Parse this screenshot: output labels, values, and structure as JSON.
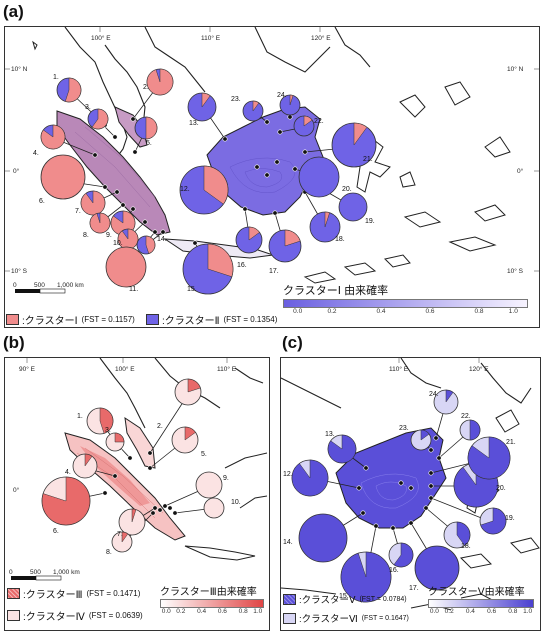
{
  "panels": {
    "a": {
      "letter": "(a)",
      "coords": {
        "lon1": "100° E",
        "lon2": "110° E",
        "lon3": "120° E",
        "lat1": "10° N",
        "lat2": "0°",
        "lat3": "10° S",
        "lat1r": "10° N",
        "lat2r": "0°",
        "lat3r": "10° S"
      },
      "scale": {
        "zero": "0",
        "mid": "500",
        "end": "1,000 km"
      },
      "legend": {
        "c1": {
          "label": ":クラスターⅠ",
          "fst": "(FST = 0.1157)",
          "color": "#f08c8c"
        },
        "c2": {
          "label": ":クラスターⅡ",
          "fst": "(FST = 0.1354)",
          "color": "#6f63e6"
        }
      },
      "colorbar": {
        "title": "クラスターⅠ 由来確率",
        "ticks": [
          "0.0",
          "0.2",
          "0.4",
          "0.6",
          "0.8",
          "1.0"
        ],
        "from": "#6a5fe0",
        "to": "#f7f3ff"
      },
      "labels": [
        "1.",
        "2.",
        "3.",
        "4.",
        "5.",
        "6.",
        "7.",
        "8.",
        "9.",
        "10.",
        "11.",
        "12.",
        "13.",
        "14.",
        "15.",
        "16.",
        "17.",
        "18.",
        "19.",
        "20.",
        "21.",
        "22.",
        "23.",
        "24."
      ]
    },
    "b": {
      "letter": "(b)",
      "coords": {
        "lon1": "90° E",
        "lon2": "100° E",
        "lon3": "110° E",
        "lat1": "0°"
      },
      "scale": {
        "zero": "0",
        "mid": "500",
        "end": "1,000 km"
      },
      "legend": {
        "c1": {
          "label": ":クラスターⅢ",
          "fst": "(FST = 0.1471)",
          "color": "#e86a6a"
        },
        "c2": {
          "label": ":クラスターⅣ",
          "fst": "(FST = 0.0639)",
          "color": "#fbe3e3"
        }
      },
      "colorbar": {
        "title": "クラスターⅢ由来確率",
        "ticks": [
          "0.0",
          "0.2",
          "0.4",
          "0.6",
          "0.8",
          "1.0"
        ],
        "from": "#ffffff",
        "to": "#e04545"
      },
      "labels": [
        "1.",
        "2.",
        "3.",
        "4.",
        "5.",
        "6.",
        "7.",
        "8.",
        "9.",
        "10."
      ]
    },
    "c": {
      "letter": "(c)",
      "coords": {
        "lon1": "110° E",
        "lon2": "120° E"
      },
      "legend": {
        "c1": {
          "label": ":クラスターⅤ",
          "fst": "(FST = 0.0784)",
          "color": "#5a4fd8"
        },
        "c2": {
          "label": ":クラスターⅥ",
          "fst": "(FST = 0.1647)",
          "color": "#d8d6f5"
        }
      },
      "colorbar": {
        "title": "クラスターⅤ由来確率",
        "ticks": [
          "0.0",
          "0.2",
          "0.4",
          "0.6",
          "0.8",
          "1.0"
        ],
        "from": "#ffffff",
        "to": "#4a3fd0"
      },
      "labels": [
        "12.",
        "13.",
        "14.",
        "15.",
        "16.",
        "17.",
        "18.",
        "19.",
        "20.",
        "21.",
        "22.",
        "23.",
        "24."
      ]
    }
  },
  "pies": {
    "a": [
      0.55,
      0.95,
      0.6,
      0.85,
      0.5,
      1.0,
      0.9,
      0.95,
      0.85,
      0.9,
      1.0,
      0.35,
      0.1,
      0.45,
      0.3,
      0.15,
      0.2,
      0.05,
      0.0,
      0.0,
      0.1,
      0.15,
      0.1,
      0.05
    ],
    "b": [
      0.45,
      0.2,
      0.25,
      0.1,
      0.15,
      0.8,
      0.05,
      0.1,
      0.0,
      0.0
    ],
    "c": [
      0.9,
      0.85,
      1.0,
      0.95,
      0.6,
      1.0,
      0.4,
      0.7,
      0.9,
      0.85,
      0.5,
      0.15,
      0.1
    ]
  }
}
